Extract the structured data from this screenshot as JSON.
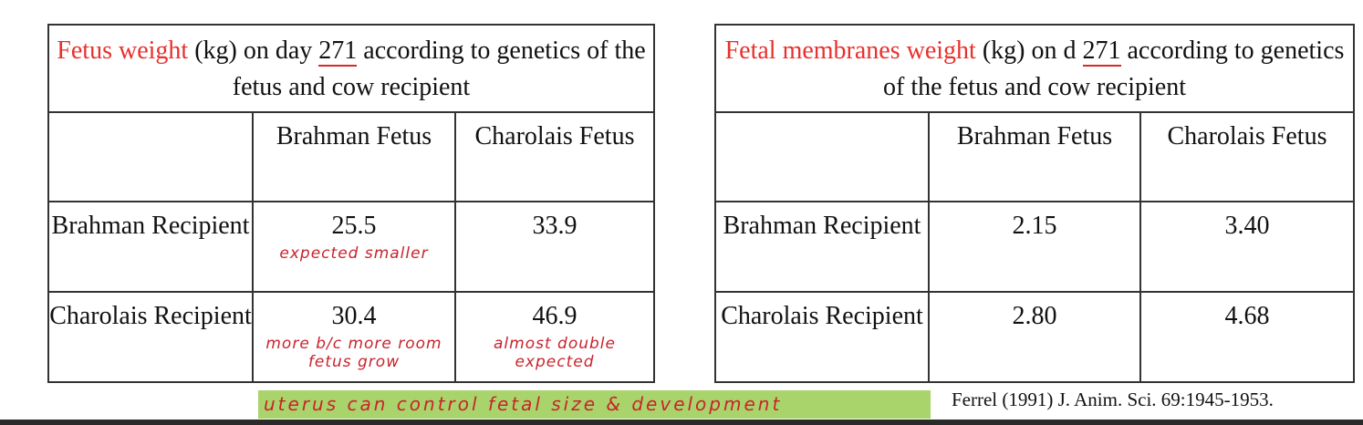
{
  "table1": {
    "title_red": "Fetus weight",
    "title_rest1": " (kg) on day ",
    "day": "271",
    "title_rest2": " according to genetics of the fetus and cow recipient",
    "headers": [
      "",
      "Brahman Fetus",
      "Charolais Fetus"
    ],
    "rows": [
      {
        "label": "Brahman Recipient",
        "values": [
          "25.5",
          "33.9"
        ],
        "notes": [
          "expected smaller",
          ""
        ]
      },
      {
        "label": "Charolais Recipient",
        "values": [
          "30.4",
          "46.9"
        ],
        "notes": [
          "more b/c more room fetus grow",
          "almost double expected"
        ]
      }
    ]
  },
  "table2": {
    "title_red": "Fetal membranes weight",
    "title_rest1": " (kg) on d ",
    "day": "271",
    "title_rest2": " according to genetics of the fetus and cow recipient",
    "headers": [
      "",
      "Brahman Fetus",
      "Charolais Fetus"
    ],
    "rows": [
      {
        "label": "Brahman Recipient",
        "values": [
          "2.15",
          "3.40"
        ]
      },
      {
        "label": "Charolais Recipient",
        "values": [
          "2.80",
          "4.68"
        ]
      }
    ]
  },
  "highlight_note": "uterus can control fetal size & development",
  "citation": "Ferrel (1991) J. Anim. Sci. 69:1945-1953."
}
